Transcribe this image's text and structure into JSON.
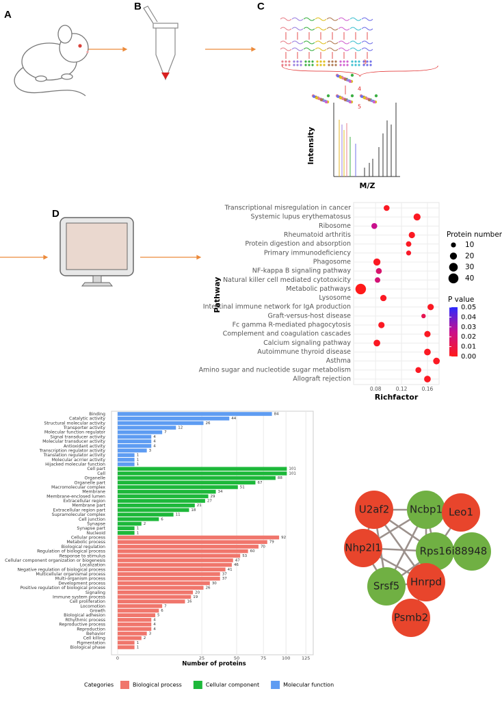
{
  "figure": {
    "panel_labels": [
      "A",
      "B",
      "C",
      "D"
    ],
    "ms_workflow": {
      "steps": [
        3,
        4,
        5
      ],
      "y_label": "Intensity",
      "x_label": "M/Z"
    }
  },
  "chart_data": [
    {
      "type": "scatter",
      "x_label": "Richfactor",
      "y_label": "Pathway",
      "categories": [
        "Transcriptional misregulation in cancer",
        "Systemic lupus erythematosus",
        "Ribosome",
        "Rheumatoid arthritis",
        "Protein digestion and absorption",
        "Primary immunodeficiency",
        "Phagosome",
        "NF-kappa B signaling pathway",
        "Natural killer cell mediated cytotoxicity",
        "Metabolic pathways",
        "Lysosome",
        "Intestinal immune network for IgA production",
        "Graft-versus-host disease",
        "Fc gamma R-mediated phagocytosis",
        "Complement and coagulation cascades",
        "Calcium signaling pathway",
        "Autoimmune thyroid disease",
        "Asthma",
        "Amino sugar and nucleotide sugar metabolism",
        "Allograft rejection"
      ],
      "x": [
        0.097,
        0.144,
        0.078,
        0.136,
        0.131,
        0.131,
        0.082,
        0.085,
        0.083,
        0.057,
        0.092,
        0.165,
        0.154,
        0.089,
        0.16,
        0.082,
        0.16,
        0.174,
        0.146,
        0.16
      ],
      "sizes": [
        14,
        20,
        14,
        16,
        12,
        10,
        20,
        14,
        12,
        45,
        16,
        16,
        8,
        16,
        16,
        18,
        18,
        18,
        14,
        18
      ],
      "p_values": [
        0.002,
        0.002,
        0.025,
        0.002,
        0.002,
        0.003,
        0.002,
        0.018,
        0.02,
        0.0,
        0.002,
        0.002,
        0.012,
        0.002,
        0.002,
        0.002,
        0.002,
        0.002,
        0.002,
        0.002
      ],
      "xlim": [
        0.046,
        0.178
      ],
      "xticks": [
        0.08,
        0.12,
        0.16
      ],
      "grid": true,
      "size_legend": {
        "title": "Protein number",
        "values": [
          10,
          20,
          30,
          40
        ]
      },
      "color_legend": {
        "title": "P value",
        "clim": [
          0,
          0.05
        ],
        "colors": [
          "#ff1a1a",
          "#c8108c",
          "#2a2aff"
        ],
        "ticks": [
          0.05,
          0.04,
          0.03,
          0.02,
          0.01,
          {
            "value": 0,
            "label": "0.00"
          }
        ]
      }
    },
    {
      "type": "bar",
      "orientation": "horizontal",
      "x_label": "Number of proteins",
      "legend_title": "Categories",
      "xlim": [
        0,
        135
      ],
      "x_scale": "sqrt",
      "xticks": [
        0,
        25,
        50,
        75,
        100,
        125
      ],
      "grid": true,
      "series": [
        {
          "name": "Biological process",
          "color": "#f0766c",
          "categories": [
            "Cellular process",
            "Metabolic process",
            "Biological regulation",
            "Regulation of biological process",
            "Response to stimulus",
            "Cellular component organization or biogenesis",
            "Localization",
            "Negative regulation of biological process",
            "Multicellular organismal process",
            "Multi-organism process",
            "Development process",
            "Positive regulation of biological process",
            "Signaling",
            "Immune system process",
            "Cell proliferation",
            "Locomotion",
            "Growth",
            "Biological adhesion",
            "Rthythmic process",
            "Reproductive process",
            "Reproduction",
            "Behavior",
            "Cell killing",
            "Pigmentation",
            "Biological phase"
          ],
          "values": [
            92,
            79,
            70,
            60,
            53,
            47,
            46,
            41,
            37,
            37,
            30,
            26,
            20,
            19,
            16,
            7,
            6,
            5,
            4,
            4,
            4,
            3,
            2,
            1,
            1
          ]
        },
        {
          "name": "Cellular component",
          "color": "#1db83a",
          "categories": [
            "Cell part",
            "Cell",
            "Organelle",
            "Organelle part",
            "Macromolecular complex",
            "Membrane",
            "Membrane-enclosed lumen",
            "Extracellular region",
            "Membrane part",
            "Extracellular region part",
            "Supramolecular complex",
            "Cell junction",
            "Synapse",
            "Synapse part",
            "Nucleoid"
          ],
          "values": [
            101,
            101,
            88,
            67,
            51,
            34,
            29,
            27,
            21,
            18,
            11,
            6,
            2,
            1,
            1
          ]
        },
        {
          "name": "Molecular function",
          "color": "#5e9cf2",
          "categories": [
            "Binding",
            "Catalytic activity",
            "Structural molecular activity",
            "Transporter activity",
            "Molecular function regulator",
            "Signal transducer activity",
            "Molecular transducer activity",
            "Antioxidant activity",
            "Transcription regulator activity",
            "Translation regulator activity",
            "Molecular acrrier activity",
            "Hijacked molecular function"
          ],
          "values": [
            84,
            44,
            26,
            12,
            7,
            4,
            4,
            4,
            3,
            1,
            1,
            1
          ]
        }
      ]
    }
  ],
  "network": {
    "nodes": [
      {
        "label": "U2af2",
        "color": "#e8452c"
      },
      {
        "label": "Ncbp1",
        "color": "#70b043"
      },
      {
        "label": "Leo1",
        "color": "#e8452c"
      },
      {
        "label": "Nhp2l1",
        "color": "#e8452c"
      },
      {
        "label": "Rps16i88948",
        "color": "#70b043"
      },
      {
        "label": "Srsf5",
        "color": "#70b043"
      },
      {
        "label": "Hnrpd",
        "color": "#e8452c"
      },
      {
        "label": "Psmb2",
        "color": "#e8452c"
      }
    ]
  }
}
